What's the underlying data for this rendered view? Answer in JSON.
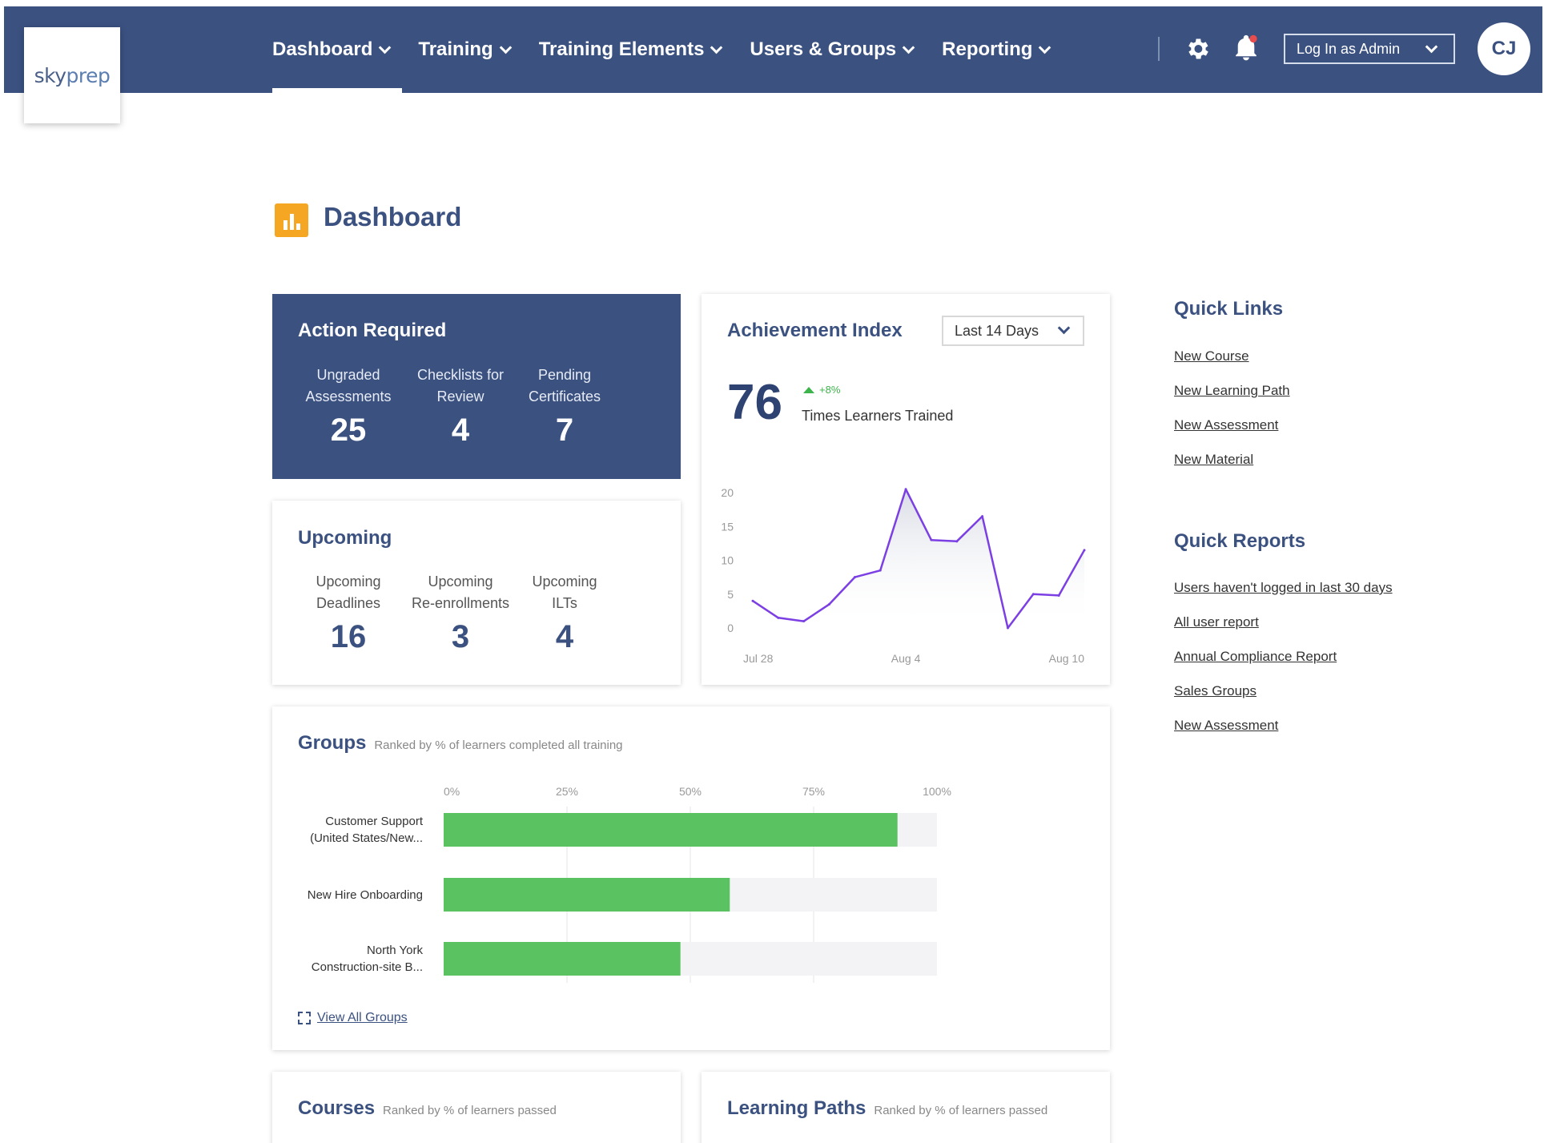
{
  "brand": {
    "logo_part1": "sky",
    "logo_part2": "prep"
  },
  "nav": {
    "items": [
      {
        "label": "Dashboard",
        "active": true
      },
      {
        "label": "Training",
        "active": false
      },
      {
        "label": "Training Elements",
        "active": false
      },
      {
        "label": "Users & Groups",
        "active": false
      },
      {
        "label": "Reporting",
        "active": false
      }
    ],
    "login_as": "Log In as Admin",
    "avatar_initials": "CJ",
    "icons": [
      "gear-icon",
      "bell-icon"
    ]
  },
  "page": {
    "title": "Dashboard",
    "icon": "bar-chart-icon"
  },
  "action_required": {
    "title": "Action Required",
    "stats": [
      {
        "label_line1": "Ungraded",
        "label_line2": "Assessments",
        "value": "25"
      },
      {
        "label_line1": "Checklists for",
        "label_line2": "Review",
        "value": "4"
      },
      {
        "label_line1": "Pending",
        "label_line2": "Certificates",
        "value": "7"
      }
    ]
  },
  "upcoming": {
    "title": "Upcoming",
    "stats": [
      {
        "label_line1": "Upcoming",
        "label_line2": "Deadlines",
        "value": "16"
      },
      {
        "label_line1": "Upcoming",
        "label_line2": "Re-enrollments",
        "value": "3"
      },
      {
        "label_line1": "Upcoming",
        "label_line2": "ILTs",
        "value": "4"
      }
    ]
  },
  "achievement": {
    "title": "Achievement Index",
    "range": "Last 14 Days",
    "value": "76",
    "delta": "+8%",
    "value_label": "Times Learners Trained"
  },
  "groups": {
    "title": "Groups",
    "subtitle": "Ranked by % of learners completed all training",
    "view_all": "View All Groups"
  },
  "courses": {
    "title": "Courses",
    "subtitle": "Ranked by % of learners passed"
  },
  "learning_paths": {
    "title": "Learning Paths",
    "subtitle": "Ranked by % of learners passed"
  },
  "quick_links": {
    "title": "Quick Links",
    "items": [
      "New Course",
      "New Learning Path",
      "New Assessment",
      "New Material"
    ]
  },
  "quick_reports": {
    "title": "Quick Reports",
    "items": [
      "Users haven't logged in last 30 days",
      "All user report",
      "Annual Compliance Report",
      "Sales Groups",
      "New Assessment"
    ]
  },
  "chart_data": [
    {
      "type": "line",
      "ylim": [
        0,
        20
      ],
      "yticks": [
        0,
        5,
        10,
        15,
        20
      ],
      "xtick_labels": [
        "Jul 28",
        "Aug 4",
        "Aug 10"
      ],
      "xtick_index": [
        0,
        6,
        13
      ],
      "series": [
        {
          "values": [
            4,
            1.5,
            1,
            3.5,
            7.5,
            8.5,
            20.5,
            13,
            12.8,
            16.5,
            0,
            5,
            4.8,
            11.5
          ],
          "color": "#7b3fe4"
        }
      ]
    },
    {
      "type": "bar",
      "orientation": "horizontal",
      "xlim": [
        0,
        100
      ],
      "xticks": [
        "0%",
        "25%",
        "50%",
        "75%",
        "100%"
      ],
      "categories": [
        [
          "Customer Support",
          "(United States/New..."
        ],
        [
          "New Hire Onboarding"
        ],
        [
          "North York",
          "Construction-site B..."
        ]
      ],
      "values": [
        92,
        58,
        48
      ],
      "color": "#5bc262"
    }
  ]
}
